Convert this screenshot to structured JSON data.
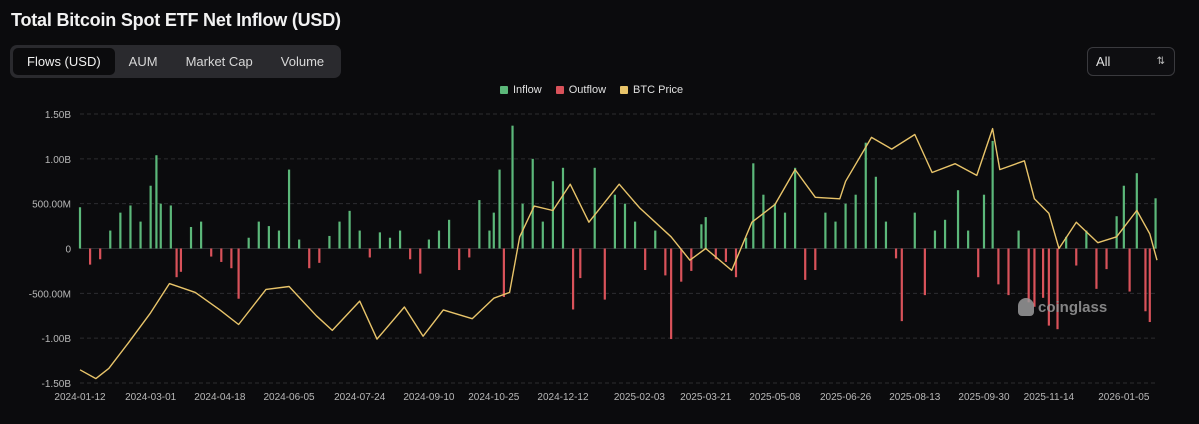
{
  "header": {
    "title": "Total Bitcoin Spot ETF Net Inflow (USD)"
  },
  "tabs": [
    {
      "label": "Flows (USD)",
      "active": true
    },
    {
      "label": "AUM",
      "active": false
    },
    {
      "label": "Market Cap",
      "active": false
    },
    {
      "label": "Volume",
      "active": false
    }
  ],
  "range_select": {
    "value": "All",
    "icon": "chevron-updown-icon"
  },
  "watermark": {
    "text": "coinglass",
    "icon": "coinglass-logo-icon"
  },
  "colors": {
    "inflow": "#5cb87a",
    "outflow": "#d9525a",
    "price": "#e8c46a",
    "grid": "#2c2c30",
    "axis_text": "#b8b8b8"
  },
  "chart_data": {
    "type": "bar",
    "title": "Total Bitcoin Spot ETF Net Inflow (USD)",
    "legend": [
      "Inflow",
      "Outflow",
      "BTC Price"
    ],
    "legend_position": "top-center",
    "grid": true,
    "ylim": [
      -1500000000,
      1500000000
    ],
    "ytick_labels": [
      "1.50B",
      "1.00B",
      "500.00M",
      "0",
      "-500.00M",
      "-1.00B",
      "-1.50B"
    ],
    "ytick_values": [
      1500000000,
      1000000000,
      500000000,
      0,
      -500000000,
      -1000000000,
      -1500000000
    ],
    "xtick_labels": [
      "2024-01-12",
      "2024-03-01",
      "2024-04-18",
      "2024-06-05",
      "2024-07-24",
      "2024-09-10",
      "2024-10-25",
      "2024-12-12",
      "2025-02-03",
      "2025-03-21",
      "2025-05-08",
      "2025-06-26",
      "2025-08-13",
      "2025-09-30",
      "2025-11-14",
      "2026-01-05"
    ],
    "x_range": [
      "2024-01-12",
      "2026-01-28"
    ],
    "flows_note_unit": "USD",
    "flows": [
      [
        "2024-01-12",
        460000000
      ],
      [
        "2024-01-19",
        -180000000
      ],
      [
        "2024-01-26",
        -120000000
      ],
      [
        "2024-02-02",
        200000000
      ],
      [
        "2024-02-09",
        400000000
      ],
      [
        "2024-02-16",
        480000000
      ],
      [
        "2024-02-23",
        300000000
      ],
      [
        "2024-03-01",
        700000000
      ],
      [
        "2024-03-05",
        1040000000
      ],
      [
        "2024-03-08",
        500000000
      ],
      [
        "2024-03-15",
        480000000
      ],
      [
        "2024-03-19",
        -320000000
      ],
      [
        "2024-03-22",
        -260000000
      ],
      [
        "2024-03-29",
        240000000
      ],
      [
        "2024-04-05",
        300000000
      ],
      [
        "2024-04-12",
        -90000000
      ],
      [
        "2024-04-19",
        -150000000
      ],
      [
        "2024-04-26",
        -220000000
      ],
      [
        "2024-05-01",
        -560000000
      ],
      [
        "2024-05-08",
        120000000
      ],
      [
        "2024-05-15",
        300000000
      ],
      [
        "2024-05-22",
        250000000
      ],
      [
        "2024-05-29",
        200000000
      ],
      [
        "2024-06-05",
        880000000
      ],
      [
        "2024-06-12",
        100000000
      ],
      [
        "2024-06-19",
        -220000000
      ],
      [
        "2024-06-26",
        -160000000
      ],
      [
        "2024-07-03",
        140000000
      ],
      [
        "2024-07-10",
        300000000
      ],
      [
        "2024-07-17",
        420000000
      ],
      [
        "2024-07-24",
        200000000
      ],
      [
        "2024-07-31",
        -100000000
      ],
      [
        "2024-08-07",
        180000000
      ],
      [
        "2024-08-14",
        120000000
      ],
      [
        "2024-08-21",
        200000000
      ],
      [
        "2024-08-28",
        -120000000
      ],
      [
        "2024-09-04",
        -280000000
      ],
      [
        "2024-09-10",
        100000000
      ],
      [
        "2024-09-17",
        200000000
      ],
      [
        "2024-09-24",
        320000000
      ],
      [
        "2024-10-01",
        -240000000
      ],
      [
        "2024-10-08",
        -100000000
      ],
      [
        "2024-10-15",
        540000000
      ],
      [
        "2024-10-22",
        200000000
      ],
      [
        "2024-10-25",
        400000000
      ],
      [
        "2024-10-29",
        880000000
      ],
      [
        "2024-11-01",
        -540000000
      ],
      [
        "2024-11-07",
        1370000000
      ],
      [
        "2024-11-14",
        500000000
      ],
      [
        "2024-11-21",
        1000000000
      ],
      [
        "2024-11-28",
        300000000
      ],
      [
        "2024-12-05",
        750000000
      ],
      [
        "2024-12-12",
        900000000
      ],
      [
        "2024-12-19",
        -680000000
      ],
      [
        "2024-12-24",
        -330000000
      ],
      [
        "2025-01-03",
        900000000
      ],
      [
        "2025-01-10",
        -570000000
      ],
      [
        "2025-01-17",
        600000000
      ],
      [
        "2025-01-24",
        500000000
      ],
      [
        "2025-01-31",
        300000000
      ],
      [
        "2025-02-07",
        -240000000
      ],
      [
        "2025-02-14",
        200000000
      ],
      [
        "2025-02-21",
        -300000000
      ],
      [
        "2025-02-25",
        -1010000000
      ],
      [
        "2025-03-04",
        -370000000
      ],
      [
        "2025-03-11",
        -250000000
      ],
      [
        "2025-03-18",
        270000000
      ],
      [
        "2025-03-21",
        350000000
      ],
      [
        "2025-03-28",
        -120000000
      ],
      [
        "2025-04-04",
        -150000000
      ],
      [
        "2025-04-11",
        -320000000
      ],
      [
        "2025-04-18",
        120000000
      ],
      [
        "2025-04-23",
        950000000
      ],
      [
        "2025-04-30",
        600000000
      ],
      [
        "2025-05-08",
        500000000
      ],
      [
        "2025-05-15",
        400000000
      ],
      [
        "2025-05-22",
        900000000
      ],
      [
        "2025-05-29",
        -350000000
      ],
      [
        "2025-06-05",
        -240000000
      ],
      [
        "2025-06-12",
        400000000
      ],
      [
        "2025-06-19",
        300000000
      ],
      [
        "2025-06-26",
        500000000
      ],
      [
        "2025-07-03",
        600000000
      ],
      [
        "2025-07-10",
        1180000000
      ],
      [
        "2025-07-17",
        800000000
      ],
      [
        "2025-07-24",
        300000000
      ],
      [
        "2025-07-31",
        -110000000
      ],
      [
        "2025-08-04",
        -810000000
      ],
      [
        "2025-08-13",
        400000000
      ],
      [
        "2025-08-20",
        -520000000
      ],
      [
        "2025-08-27",
        200000000
      ],
      [
        "2025-09-03",
        320000000
      ],
      [
        "2025-09-12",
        650000000
      ],
      [
        "2025-09-19",
        200000000
      ],
      [
        "2025-09-26",
        -320000000
      ],
      [
        "2025-09-30",
        600000000
      ],
      [
        "2025-10-06",
        1200000000
      ],
      [
        "2025-10-10",
        -400000000
      ],
      [
        "2025-10-17",
        -520000000
      ],
      [
        "2025-10-24",
        200000000
      ],
      [
        "2025-10-31",
        -600000000
      ],
      [
        "2025-11-04",
        -650000000
      ],
      [
        "2025-11-10",
        -550000000
      ],
      [
        "2025-11-14",
        -860000000
      ],
      [
        "2025-11-20",
        -900000000
      ],
      [
        "2025-11-26",
        130000000
      ],
      [
        "2025-12-03",
        -190000000
      ],
      [
        "2025-12-10",
        200000000
      ],
      [
        "2025-12-17",
        -450000000
      ],
      [
        "2025-12-24",
        -230000000
      ],
      [
        "2025-12-31",
        360000000
      ],
      [
        "2026-01-05",
        700000000
      ],
      [
        "2026-01-09",
        -480000000
      ],
      [
        "2026-01-14",
        840000000
      ],
      [
        "2026-01-20",
        -700000000
      ],
      [
        "2026-01-23",
        -820000000
      ],
      [
        "2026-01-27",
        560000000
      ]
    ],
    "btc_price_note": "secondary axis, unlabelled; values in USD",
    "btc_price_range": [
      38000,
      130000
    ],
    "btc_price": [
      [
        "2024-01-12",
        42500
      ],
      [
        "2024-01-23",
        39500
      ],
      [
        "2024-02-01",
        43000
      ],
      [
        "2024-02-15",
        52000
      ],
      [
        "2024-03-01",
        62000
      ],
      [
        "2024-03-14",
        72000
      ],
      [
        "2024-04-01",
        69000
      ],
      [
        "2024-04-18",
        63000
      ],
      [
        "2024-05-01",
        58000
      ],
      [
        "2024-05-20",
        70000
      ],
      [
        "2024-06-05",
        71000
      ],
      [
        "2024-06-24",
        61000
      ],
      [
        "2024-07-05",
        56000
      ],
      [
        "2024-07-24",
        66000
      ],
      [
        "2024-08-05",
        53000
      ],
      [
        "2024-08-24",
        64000
      ],
      [
        "2024-09-06",
        54000
      ],
      [
        "2024-09-20",
        63000
      ],
      [
        "2024-10-10",
        60000
      ],
      [
        "2024-10-25",
        67000
      ],
      [
        "2024-11-05",
        69000
      ],
      [
        "2024-11-12",
        88000
      ],
      [
        "2024-11-22",
        98500
      ],
      [
        "2024-12-05",
        97000
      ],
      [
        "2024-12-17",
        106000
      ],
      [
        "2024-12-30",
        93000
      ],
      [
        "2025-01-20",
        106000
      ],
      [
        "2025-02-03",
        98000
      ],
      [
        "2025-02-25",
        88000
      ],
      [
        "2025-03-10",
        80000
      ],
      [
        "2025-03-21",
        84000
      ],
      [
        "2025-04-08",
        76500
      ],
      [
        "2025-04-22",
        93000
      ],
      [
        "2025-05-08",
        99000
      ],
      [
        "2025-05-22",
        111000
      ],
      [
        "2025-06-05",
        101500
      ],
      [
        "2025-06-22",
        101000
      ],
      [
        "2025-06-26",
        107000
      ],
      [
        "2025-07-14",
        122000
      ],
      [
        "2025-07-28",
        118000
      ],
      [
        "2025-08-13",
        123000
      ],
      [
        "2025-08-25",
        110000
      ],
      [
        "2025-09-10",
        113000
      ],
      [
        "2025-09-25",
        109000
      ],
      [
        "2025-10-06",
        125000
      ],
      [
        "2025-10-11",
        111000
      ],
      [
        "2025-10-28",
        114000
      ],
      [
        "2025-11-04",
        101000
      ],
      [
        "2025-11-14",
        96000
      ],
      [
        "2025-11-21",
        84000
      ],
      [
        "2025-12-03",
        93000
      ],
      [
        "2025-12-18",
        86000
      ],
      [
        "2025-12-31",
        88000
      ],
      [
        "2026-01-14",
        97000
      ],
      [
        "2026-01-23",
        89000
      ],
      [
        "2026-01-28",
        80000
      ]
    ]
  }
}
